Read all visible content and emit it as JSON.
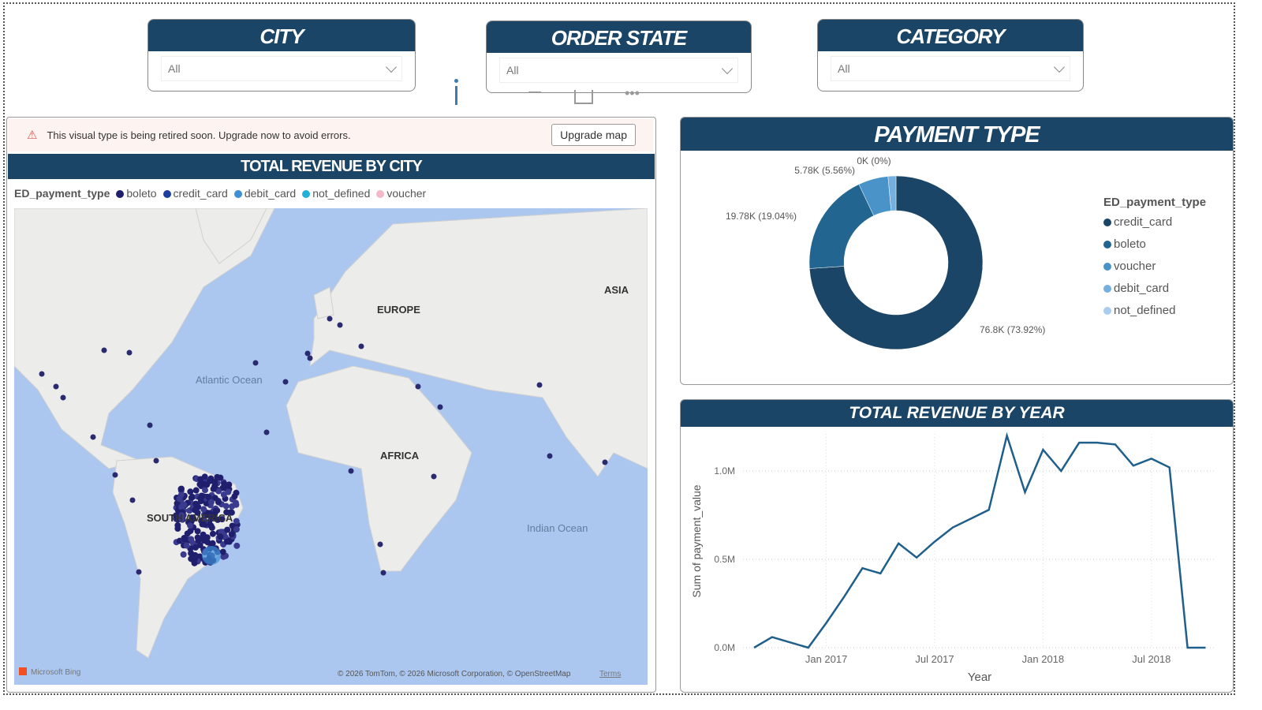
{
  "slicers": [
    {
      "title": "CITY",
      "value": "All"
    },
    {
      "title": "ORDER STATE",
      "value": "All"
    },
    {
      "title": "CATEGORY",
      "value": "All"
    }
  ],
  "warning": {
    "text": "This visual type is being retired soon. Upgrade now to avoid errors.",
    "button": "Upgrade map"
  },
  "map": {
    "title": "TOTAL REVENUE BY CITY",
    "legend_title": "ED_payment_type",
    "legend": [
      {
        "label": "boleto",
        "color": "#1f1f6e"
      },
      {
        "label": "credit_card",
        "color": "#1f3f9e"
      },
      {
        "label": "debit_card",
        "color": "#3d8fd6"
      },
      {
        "label": "not_defined",
        "color": "#22b0d8"
      },
      {
        "label": "voucher",
        "color": "#f4b8c8"
      }
    ],
    "labels": {
      "europe": "EUROPE",
      "asia": "ASIA",
      "africa": "AFRICA",
      "south_america": "SOUTH AMERICA",
      "atlantic": "Atlantic Ocean",
      "indian": "Indian Ocean"
    },
    "bing": "Microsoft Bing",
    "attribution": "© 2026 TomTom, © 2026 Microsoft Corporation, © OpenStreetMap",
    "terms": "Terms"
  },
  "payment": {
    "title": "PAYMENT TYPE",
    "legend_title": "ED_payment_type",
    "chart_data": {
      "type": "pie",
      "donut": true,
      "slices": [
        {
          "name": "credit_card",
          "value": 76.8,
          "pct": 73.92,
          "label": "76.8K (73.92%)",
          "color": "#1a4566"
        },
        {
          "name": "boleto",
          "value": 19.78,
          "pct": 19.04,
          "label": "19.78K (19.04%)",
          "color": "#226591"
        },
        {
          "name": "voucher",
          "value": 5.78,
          "pct": 5.56,
          "label": "5.78K (5.56%)",
          "color": "#4a93c8"
        },
        {
          "name": "debit_card",
          "value": 1.54,
          "pct": 1.48,
          "label": "",
          "color": "#74b0df"
        },
        {
          "name": "not_defined",
          "value": 0,
          "pct": 0,
          "label": "0K (0%)",
          "color": "#a8cdee"
        }
      ]
    }
  },
  "revenue": {
    "title": "TOTAL REVENUE BY YEAR",
    "chart_data": {
      "type": "line",
      "xlabel": "Year",
      "ylabel": "Sum of payment_value",
      "ylim": [
        0,
        1.2
      ],
      "yticks": [
        "0.0M",
        "0.5M",
        "1.0M"
      ],
      "xticks": [
        "Jan 2017",
        "Jul 2017",
        "Jan 2018",
        "Jul 2018"
      ],
      "x": [
        "2016-09",
        "2016-10",
        "2016-11",
        "2016-12",
        "2017-01",
        "2017-02",
        "2017-03",
        "2017-04",
        "2017-05",
        "2017-06",
        "2017-07",
        "2017-08",
        "2017-09",
        "2017-10",
        "2017-11",
        "2017-12",
        "2018-01",
        "2018-02",
        "2018-03",
        "2018-04",
        "2018-05",
        "2018-06",
        "2018-07",
        "2018-08",
        "2018-09",
        "2018-10"
      ],
      "values": [
        0,
        0.06,
        0.03,
        0,
        0.14,
        0.29,
        0.45,
        0.42,
        0.59,
        0.51,
        0.6,
        0.68,
        0.73,
        0.78,
        1.2,
        0.88,
        1.12,
        1.0,
        1.16,
        1.16,
        1.15,
        1.03,
        1.07,
        1.02,
        0,
        0
      ],
      "color": "#1f5f8b"
    }
  }
}
